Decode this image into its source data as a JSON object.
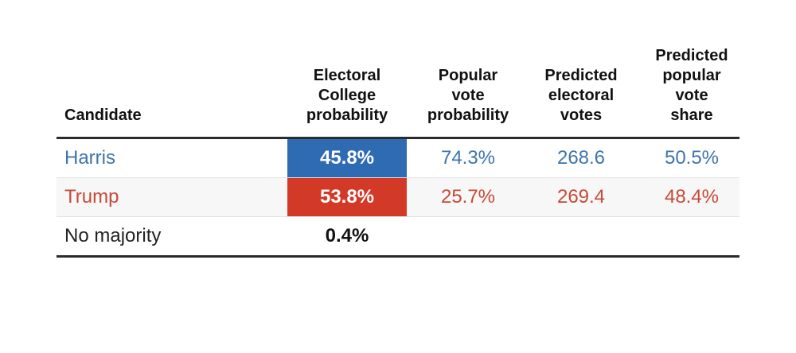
{
  "colors": {
    "harris": "#2f6bb3",
    "harris_text": "#3d74ad",
    "trump": "#d23a27",
    "trump_text": "#c64a37",
    "neutral_text": "#222222"
  },
  "chart_data": {
    "type": "table",
    "columns": [
      "Candidate",
      "Electoral\nCollege\nprobability",
      "Popular\nvote\nprobability",
      "Predicted\nelectoral\nvotes",
      "Predicted\npopular\nvote\nshare"
    ],
    "rows": [
      {
        "candidate": "Harris",
        "electoral_college_probability": "45.8%",
        "popular_vote_probability": "74.3%",
        "predicted_electoral_votes": "268.6",
        "predicted_popular_vote_share": "50.5%"
      },
      {
        "candidate": "Trump",
        "electoral_college_probability": "53.8%",
        "popular_vote_probability": "25.7%",
        "predicted_electoral_votes": "269.4",
        "predicted_popular_vote_share": "48.4%"
      },
      {
        "candidate": "No majority",
        "electoral_college_probability": "0.4%"
      }
    ]
  }
}
